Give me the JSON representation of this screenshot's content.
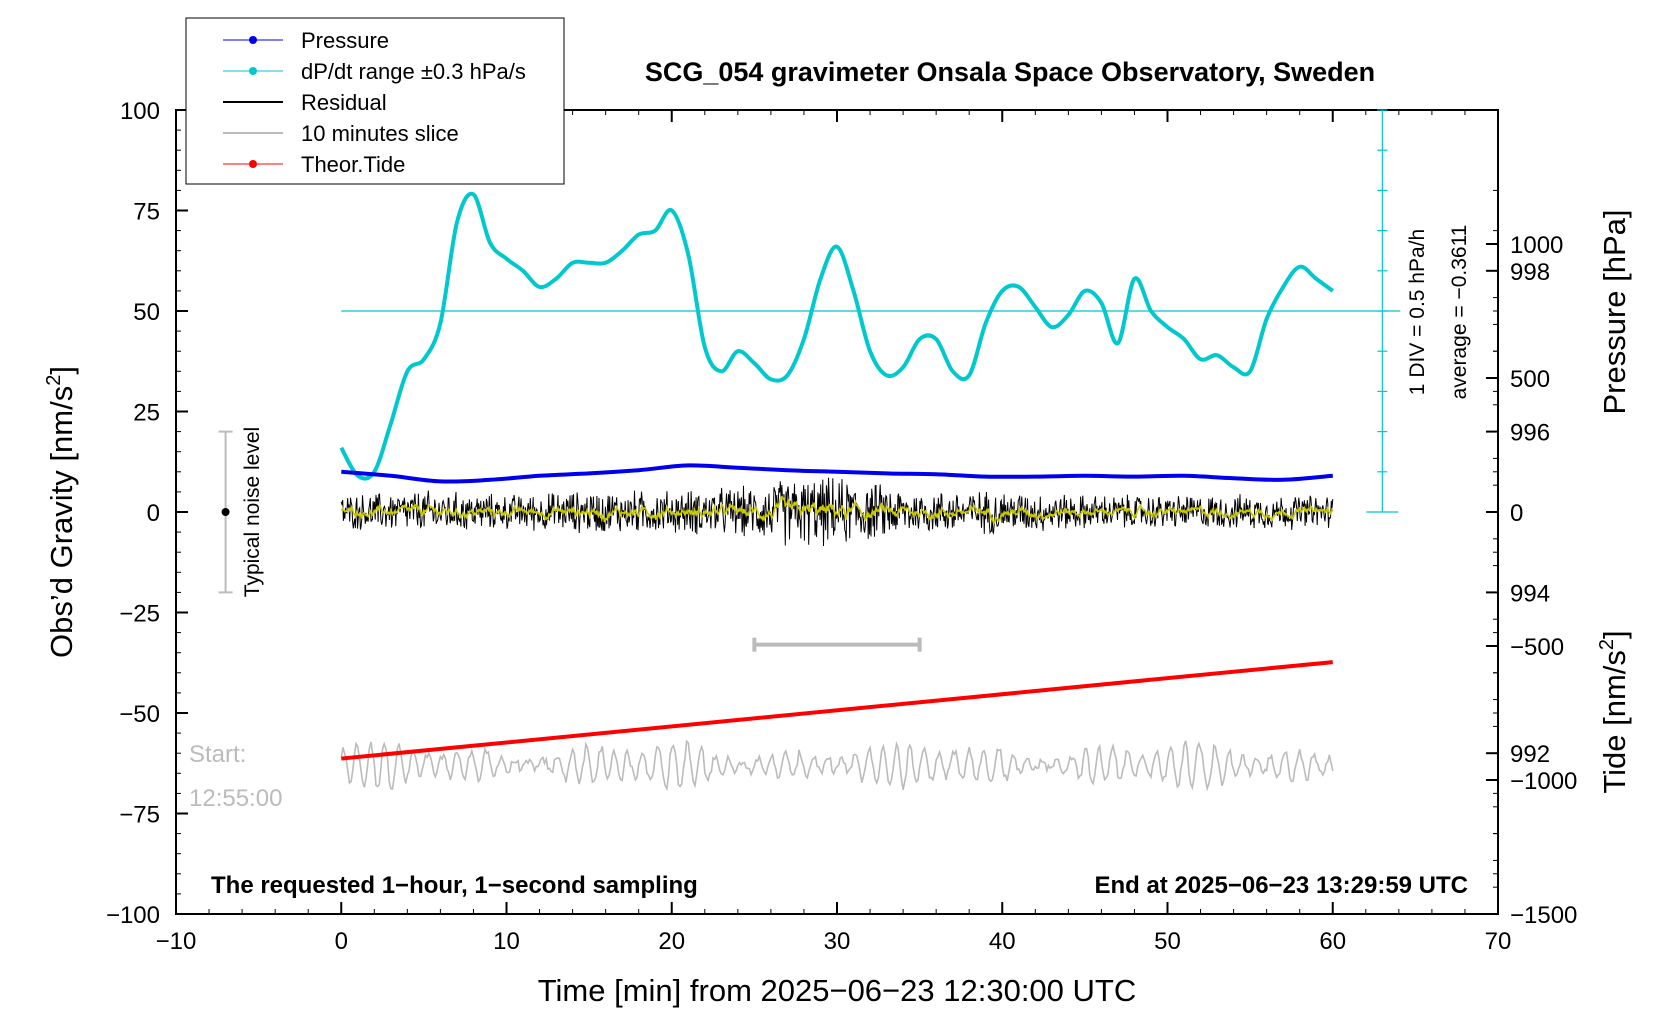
{
  "chart_data": {
    "type": "line",
    "title": "SCG_054 gravimeter Onsala Space Observatory, Sweden",
    "xlabel": "Time [min] from 2025−06−23 12:30:00 UTC",
    "ylabel_left": "Obs’d Gravity [nm/s²]",
    "ylabel_right_pressure": "Pressure [hPa]",
    "ylabel_right_tide": "Tide [nm/s²]",
    "xlim": [
      -10,
      70
    ],
    "ylim": [
      -100,
      100
    ],
    "pressure_lim": [
      990,
      1000
    ],
    "tide_lim": [
      -1500,
      1500
    ],
    "x_ticks": [
      -10,
      0,
      10,
      20,
      30,
      40,
      50,
      60,
      70
    ],
    "x_tick_labels": [
      "−10",
      "0",
      "10",
      "20",
      "30",
      "40",
      "50",
      "60",
      "70"
    ],
    "y_ticks": [
      100,
      75,
      50,
      25,
      0,
      -25,
      -50,
      -75,
      -100
    ],
    "y_tick_labels": [
      "100",
      "75",
      "50",
      "25",
      "0",
      "−25",
      "−50",
      "−75",
      "−100"
    ],
    "pressure_ticks": [
      998,
      996,
      994,
      992
    ],
    "pressure_tick_labels": [
      "998",
      "996",
      "994",
      "992"
    ],
    "tide_ticks": [
      1000,
      500,
      0,
      -500,
      -1000,
      -1500
    ],
    "tide_tick_labels": [
      "1000",
      "500",
      "0",
      "−500",
      "−1000",
      "−1500"
    ],
    "legend": [
      {
        "label": "Pressure",
        "color": "#0000ee",
        "marker": true
      },
      {
        "label": "dP/dt range ±0.3 hPa/s",
        "color": "#00c8cc",
        "marker": true
      },
      {
        "label": "Residual",
        "color": "#000000",
        "marker": false
      },
      {
        "label": "10 minutes slice",
        "color": "#bbbbbb",
        "marker": false
      },
      {
        "label": "Theor.Tide",
        "color": "#ff0000",
        "marker": true
      }
    ],
    "legend_position": "top-left",
    "series": [
      {
        "name": "Pressure",
        "axis": "pressure",
        "color": "#0000ee",
        "x": [
          0,
          3,
          6,
          9,
          12,
          15,
          18,
          21,
          24,
          27,
          30,
          33,
          36,
          39,
          42,
          45,
          48,
          51,
          54,
          57,
          60
        ],
        "values": [
          995.5,
          995.45,
          995.38,
          995.4,
          995.45,
          995.48,
          995.52,
          995.58,
          995.55,
          995.52,
          995.5,
          995.48,
          995.47,
          995.44,
          995.44,
          995.45,
          995.44,
          995.45,
          995.42,
          995.4,
          995.45
        ]
      },
      {
        "name": "dP/dt",
        "axis": "gravity",
        "color": "#00c8cc",
        "x": [
          0,
          1,
          2,
          3,
          4,
          5,
          6,
          7,
          8,
          9,
          10,
          11,
          12,
          13,
          14,
          15,
          16,
          17,
          18,
          19,
          20,
          21,
          22,
          23,
          24,
          25,
          26,
          27,
          28,
          29,
          30,
          31,
          32,
          33,
          34,
          35,
          36,
          37,
          38,
          39,
          40,
          41,
          42,
          43,
          44,
          45,
          46,
          47,
          48,
          49,
          50,
          51,
          52,
          53,
          54,
          55,
          56,
          57,
          58,
          59,
          60
        ],
        "values": [
          16,
          9,
          10,
          22,
          35,
          38,
          47,
          72,
          79,
          67,
          63,
          60,
          56,
          58,
          62,
          62,
          62,
          65,
          69,
          70,
          75,
          64,
          41,
          35,
          40,
          37,
          33,
          34,
          43,
          58,
          66,
          55,
          40,
          34,
          36,
          43,
          43,
          35,
          34,
          47,
          55,
          56,
          51,
          46,
          49,
          55,
          52,
          42,
          58,
          50,
          46,
          43,
          38,
          39,
          36,
          35,
          48,
          56,
          61,
          58,
          55
        ]
      },
      {
        "name": "Residual",
        "axis": "gravity",
        "color": "#000000",
        "x": [
          0,
          5,
          10,
          15,
          20,
          25,
          27,
          30,
          35,
          40,
          45,
          50,
          55,
          60
        ],
        "amplitude": [
          4,
          5,
          4,
          5,
          5,
          6,
          8,
          8,
          5,
          5,
          4,
          4,
          4,
          4
        ]
      },
      {
        "name": "10 minutes slice",
        "axis": "gravity",
        "color": "#bbbbbb",
        "x_start": 0,
        "x_end": 60,
        "center": -63,
        "amplitude": 6
      },
      {
        "name": "Theor.Tide",
        "axis": "tide",
        "color": "#ff0000",
        "x": [
          0,
          60
        ],
        "values": [
          -920,
          -560
        ]
      }
    ],
    "average_line": {
      "value": 50,
      "color": "#00c8cc"
    },
    "dpdt_scale": {
      "x": 63,
      "y_top": 100,
      "y_bottom": 0
    },
    "slice_bracket": {
      "x_start": 25,
      "x_end": 35,
      "y": -33
    },
    "noise_bar": {
      "x": -7,
      "y_center": 0,
      "y_low": -20,
      "y_high": 20,
      "label": "Typical noise level"
    },
    "annotations": {
      "start_label": "Start:",
      "start_time": "12:55:00",
      "bottom_left": "The requested 1−hour, 1−second sampling",
      "bottom_right": "End at 2025−06−23 13:29:59 UTC",
      "div_note": "1 DIV = 0.5 hPa/h",
      "average_note": "average = −0.3611"
    }
  }
}
